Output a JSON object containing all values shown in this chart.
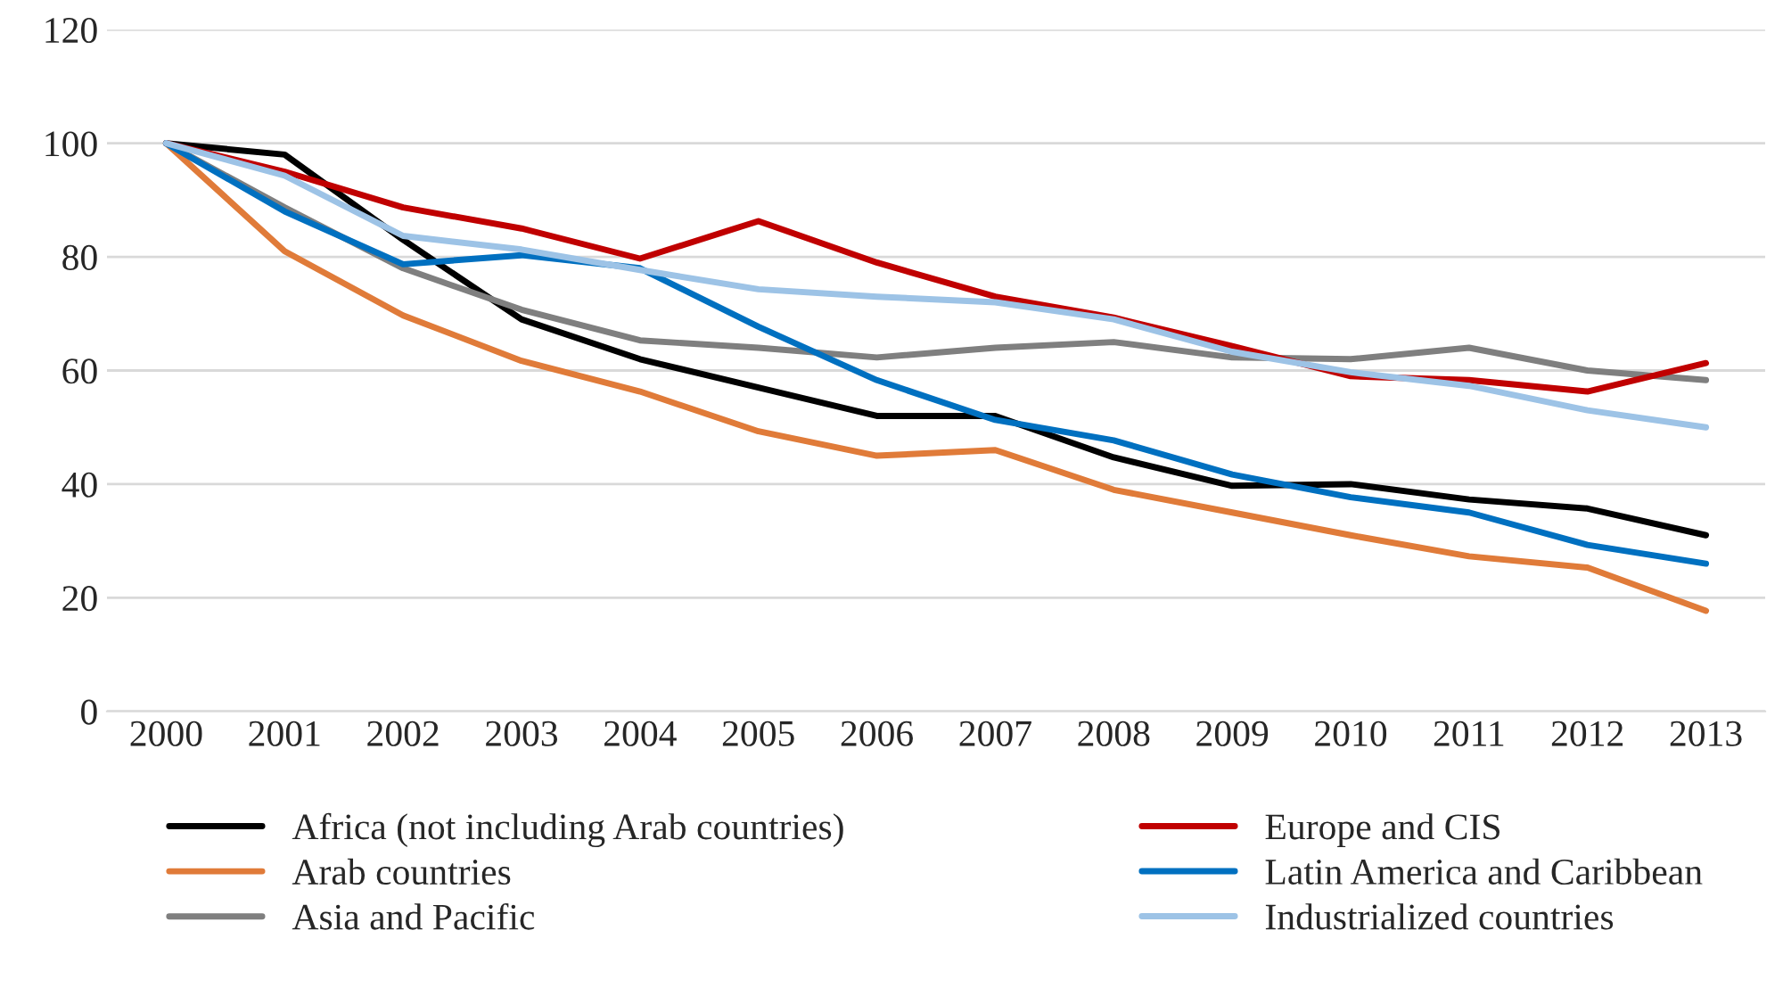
{
  "chart_data": {
    "type": "line",
    "categories": [
      "2000",
      "2001",
      "2002",
      "2003",
      "2004",
      "2005",
      "2006",
      "2007",
      "2008",
      "2009",
      "2010",
      "2011",
      "2012",
      "2013"
    ],
    "series": [
      {
        "name": "Africa (not including Arab countries)",
        "color": "#000000",
        "values": [
          100,
          98,
          83,
          69,
          62,
          57,
          52,
          52,
          44.7,
          39.7,
          40,
          37.3,
          35.7,
          31
        ]
      },
      {
        "name": "Arab countries",
        "color": "#e07b39",
        "values": [
          100,
          81,
          69.7,
          61.7,
          56.3,
          49.3,
          45,
          46,
          39,
          35,
          31,
          27.3,
          25.3,
          17.7
        ]
      },
      {
        "name": "Asia and Pacific",
        "color": "#7f7f7f",
        "values": [
          100,
          88.7,
          78,
          70.7,
          65.3,
          64,
          62.3,
          64,
          65,
          62.3,
          62,
          64,
          60,
          58.3
        ]
      },
      {
        "name": "Europe and CIS",
        "color": "#c00000",
        "values": [
          100,
          95,
          88.7,
          85,
          79.7,
          86.3,
          79,
          73,
          69.3,
          64.3,
          59,
          58.3,
          56.3,
          61.3
        ]
      },
      {
        "name": "Latin America and Caribbean",
        "color": "#0070c0",
        "values": [
          100,
          88,
          78.7,
          80.3,
          78,
          67.7,
          58.3,
          51.3,
          47.7,
          41.7,
          37.7,
          35,
          29.3,
          26
        ]
      },
      {
        "name": "Industrialized countries",
        "color": "#9dc3e6",
        "values": [
          100,
          94.3,
          83.7,
          81.3,
          77.7,
          74.3,
          73,
          72,
          69,
          63.3,
          59.7,
          57.3,
          53,
          50
        ]
      }
    ],
    "ylim": [
      0,
      120
    ],
    "yticks": [
      0,
      20,
      40,
      60,
      80,
      100,
      120
    ],
    "grid": "y",
    "legend": "bottom",
    "marker": "none",
    "line_style": "solid"
  }
}
